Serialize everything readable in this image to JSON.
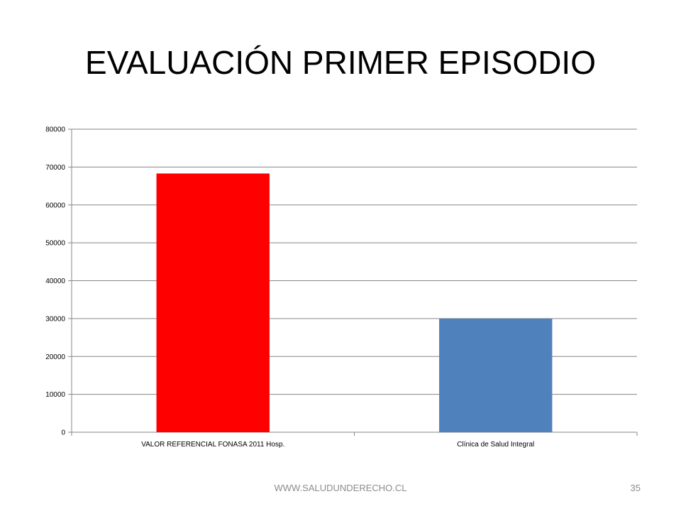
{
  "slide": {
    "title": "EVALUACIÓN PRIMER EPISODIO",
    "footer_url": "WWW.SALUDUNDERECHO.CL",
    "page_number": "35"
  },
  "chart_data": {
    "type": "bar",
    "title": "",
    "xlabel": "",
    "ylabel": "",
    "categories": [
      "VALOR REFERENCIAL FONASA 2011 Hosp.",
      "Clínica de Salud Integral"
    ],
    "values": [
      68300,
      30000
    ],
    "bar_colors": [
      "#ff0000",
      "#4f81bd"
    ],
    "ylim": [
      0,
      80000
    ],
    "y_ticks": [
      0,
      10000,
      20000,
      30000,
      40000,
      50000,
      60000,
      70000,
      80000
    ],
    "grid": true,
    "legend": "none"
  }
}
